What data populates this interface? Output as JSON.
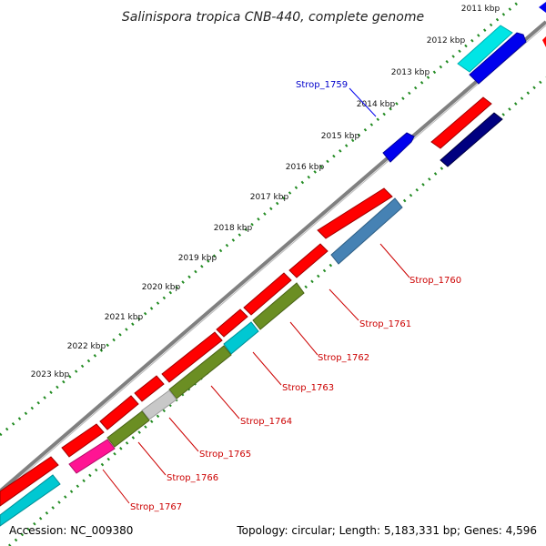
{
  "title": "Salinispora tropica CNB-440, complete genome",
  "kbp_ticks": [
    "2011 kbp",
    "2012 kbp",
    "2013 kbp",
    "2014 kbp",
    "2015 kbp",
    "2016 kbp",
    "2017 kbp",
    "2018 kbp",
    "2019 kbp",
    "2020 kbp",
    "2021 kbp",
    "2022 kbp",
    "2023 kbp"
  ],
  "gene_labels": [
    "Strop_1759",
    "Strop_1760",
    "Strop_1761",
    "Strop_1762",
    "Strop_1763",
    "Strop_1764",
    "Strop_1765",
    "Strop_1766",
    "Strop_1767"
  ],
  "footer": {
    "accession": "Accession: NC_009380",
    "topology": "Topology: circular; Length: 5,183,331 bp; Genes: 4,596"
  },
  "colors": {
    "cds_forward": "#ff0000",
    "backbone": "#808080",
    "tick": "#228b22",
    "cyan": "#00e5e5",
    "navy": "#000080",
    "blue": "#0000ee",
    "steelblue": "#4682b4",
    "olive": "#6b8e23",
    "gray": "#c8c8c8",
    "magenta": "#ff1493"
  }
}
